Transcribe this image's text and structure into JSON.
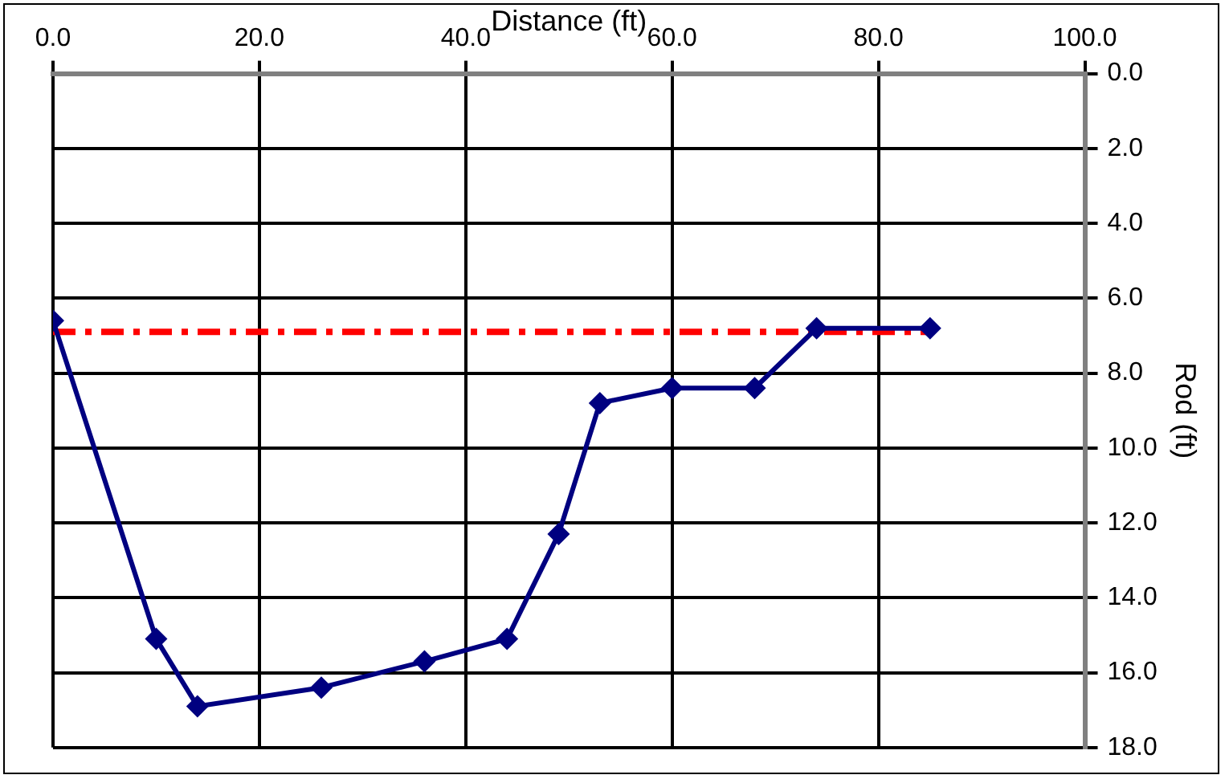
{
  "chart_data": {
    "type": "line",
    "xlabel": "Distance (ft)",
    "ylabel": "Rod (ft)",
    "grid": true,
    "legend": false,
    "marker": "diamond",
    "xlim": [
      0,
      100
    ],
    "xticks": [
      {
        "value": 0,
        "label": "0.0"
      },
      {
        "value": 20,
        "label": "20.0"
      },
      {
        "value": 40,
        "label": "40.0"
      },
      {
        "value": 60,
        "label": "60.0"
      },
      {
        "value": 80,
        "label": "80.0"
      },
      {
        "value": 100,
        "label": "100.0"
      }
    ],
    "ylim": [
      18,
      0
    ],
    "yticks": [
      {
        "value": 0,
        "label": "0.0"
      },
      {
        "value": 2,
        "label": "2.0"
      },
      {
        "value": 4,
        "label": "4.0"
      },
      {
        "value": 6,
        "label": "6.0"
      },
      {
        "value": 8,
        "label": "8.0"
      },
      {
        "value": 10,
        "label": "10.0"
      },
      {
        "value": 12,
        "label": "12.0"
      },
      {
        "value": 14,
        "label": "14.0"
      },
      {
        "value": 16,
        "label": "16.0"
      },
      {
        "value": 18,
        "label": "18.0"
      }
    ],
    "series": [
      {
        "color": "#000080",
        "x": [
          0,
          10,
          14,
          26,
          36,
          44,
          49,
          53,
          60,
          68,
          74,
          85
        ],
        "values": [
          6.6,
          15.1,
          16.9,
          16.4,
          15.7,
          15.1,
          12.3,
          8.8,
          8.4,
          8.4,
          6.8,
          6.8
        ]
      },
      {
        "color": "#ff0000",
        "line_style": "dashed",
        "marker": "none",
        "x": [
          0,
          85
        ],
        "values": [
          6.9,
          6.9
        ]
      }
    ]
  }
}
